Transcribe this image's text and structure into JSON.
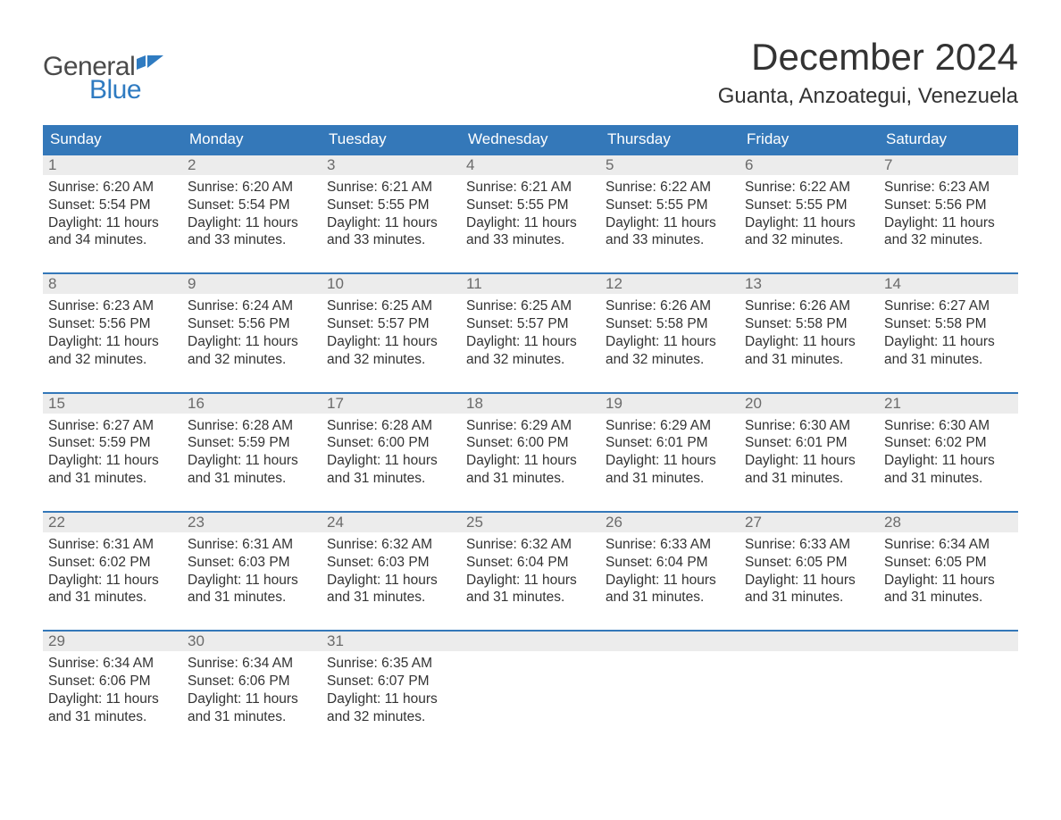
{
  "logo": {
    "word1": "General",
    "word2": "Blue",
    "flag_color": "#2f7bc1"
  },
  "title": "December 2024",
  "location": "Guanta, Anzoategui, Venezuela",
  "colors": {
    "header_bg": "#3478b9",
    "header_text": "#ffffff",
    "daynum_bg": "#ececec",
    "daynum_text": "#6b6b6b",
    "body_text": "#333333",
    "week_border": "#3478b9",
    "page_bg": "#ffffff"
  },
  "fonts": {
    "title_size": 42,
    "location_size": 24,
    "dow_size": 17,
    "body_size": 15.5
  },
  "days_of_week": [
    "Sunday",
    "Monday",
    "Tuesday",
    "Wednesday",
    "Thursday",
    "Friday",
    "Saturday"
  ],
  "labels": {
    "sunrise": "Sunrise:",
    "sunset": "Sunset:",
    "daylight": "Daylight:"
  },
  "weeks": [
    [
      {
        "n": "1",
        "sunrise": "6:20 AM",
        "sunset": "5:54 PM",
        "daylight": "11 hours and 34 minutes."
      },
      {
        "n": "2",
        "sunrise": "6:20 AM",
        "sunset": "5:54 PM",
        "daylight": "11 hours and 33 minutes."
      },
      {
        "n": "3",
        "sunrise": "6:21 AM",
        "sunset": "5:55 PM",
        "daylight": "11 hours and 33 minutes."
      },
      {
        "n": "4",
        "sunrise": "6:21 AM",
        "sunset": "5:55 PM",
        "daylight": "11 hours and 33 minutes."
      },
      {
        "n": "5",
        "sunrise": "6:22 AM",
        "sunset": "5:55 PM",
        "daylight": "11 hours and 33 minutes."
      },
      {
        "n": "6",
        "sunrise": "6:22 AM",
        "sunset": "5:55 PM",
        "daylight": "11 hours and 32 minutes."
      },
      {
        "n": "7",
        "sunrise": "6:23 AM",
        "sunset": "5:56 PM",
        "daylight": "11 hours and 32 minutes."
      }
    ],
    [
      {
        "n": "8",
        "sunrise": "6:23 AM",
        "sunset": "5:56 PM",
        "daylight": "11 hours and 32 minutes."
      },
      {
        "n": "9",
        "sunrise": "6:24 AM",
        "sunset": "5:56 PM",
        "daylight": "11 hours and 32 minutes."
      },
      {
        "n": "10",
        "sunrise": "6:25 AM",
        "sunset": "5:57 PM",
        "daylight": "11 hours and 32 minutes."
      },
      {
        "n": "11",
        "sunrise": "6:25 AM",
        "sunset": "5:57 PM",
        "daylight": "11 hours and 32 minutes."
      },
      {
        "n": "12",
        "sunrise": "6:26 AM",
        "sunset": "5:58 PM",
        "daylight": "11 hours and 32 minutes."
      },
      {
        "n": "13",
        "sunrise": "6:26 AM",
        "sunset": "5:58 PM",
        "daylight": "11 hours and 31 minutes."
      },
      {
        "n": "14",
        "sunrise": "6:27 AM",
        "sunset": "5:58 PM",
        "daylight": "11 hours and 31 minutes."
      }
    ],
    [
      {
        "n": "15",
        "sunrise": "6:27 AM",
        "sunset": "5:59 PM",
        "daylight": "11 hours and 31 minutes."
      },
      {
        "n": "16",
        "sunrise": "6:28 AM",
        "sunset": "5:59 PM",
        "daylight": "11 hours and 31 minutes."
      },
      {
        "n": "17",
        "sunrise": "6:28 AM",
        "sunset": "6:00 PM",
        "daylight": "11 hours and 31 minutes."
      },
      {
        "n": "18",
        "sunrise": "6:29 AM",
        "sunset": "6:00 PM",
        "daylight": "11 hours and 31 minutes."
      },
      {
        "n": "19",
        "sunrise": "6:29 AM",
        "sunset": "6:01 PM",
        "daylight": "11 hours and 31 minutes."
      },
      {
        "n": "20",
        "sunrise": "6:30 AM",
        "sunset": "6:01 PM",
        "daylight": "11 hours and 31 minutes."
      },
      {
        "n": "21",
        "sunrise": "6:30 AM",
        "sunset": "6:02 PM",
        "daylight": "11 hours and 31 minutes."
      }
    ],
    [
      {
        "n": "22",
        "sunrise": "6:31 AM",
        "sunset": "6:02 PM",
        "daylight": "11 hours and 31 minutes."
      },
      {
        "n": "23",
        "sunrise": "6:31 AM",
        "sunset": "6:03 PM",
        "daylight": "11 hours and 31 minutes."
      },
      {
        "n": "24",
        "sunrise": "6:32 AM",
        "sunset": "6:03 PM",
        "daylight": "11 hours and 31 minutes."
      },
      {
        "n": "25",
        "sunrise": "6:32 AM",
        "sunset": "6:04 PM",
        "daylight": "11 hours and 31 minutes."
      },
      {
        "n": "26",
        "sunrise": "6:33 AM",
        "sunset": "6:04 PM",
        "daylight": "11 hours and 31 minutes."
      },
      {
        "n": "27",
        "sunrise": "6:33 AM",
        "sunset": "6:05 PM",
        "daylight": "11 hours and 31 minutes."
      },
      {
        "n": "28",
        "sunrise": "6:34 AM",
        "sunset": "6:05 PM",
        "daylight": "11 hours and 31 minutes."
      }
    ],
    [
      {
        "n": "29",
        "sunrise": "6:34 AM",
        "sunset": "6:06 PM",
        "daylight": "11 hours and 31 minutes."
      },
      {
        "n": "30",
        "sunrise": "6:34 AM",
        "sunset": "6:06 PM",
        "daylight": "11 hours and 31 minutes."
      },
      {
        "n": "31",
        "sunrise": "6:35 AM",
        "sunset": "6:07 PM",
        "daylight": "11 hours and 32 minutes."
      },
      null,
      null,
      null,
      null
    ]
  ]
}
